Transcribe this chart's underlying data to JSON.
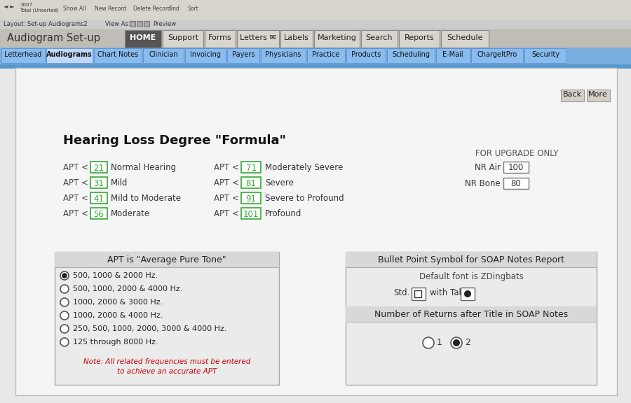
{
  "title_bar_text": "Audiogram Set-up",
  "back_more_buttons": [
    "Back",
    "More"
  ],
  "main_title": "Hearing Loss Degree \"Formula\"",
  "formula_rows_left": [
    {
      "label": "APT <",
      "value": "21",
      "desc": "Normal Hearing"
    },
    {
      "label": "APT <",
      "value": "31",
      "desc": "Mild"
    },
    {
      "label": "APT <",
      "value": "41",
      "desc": "Mild to Moderate"
    },
    {
      "label": "APT <",
      "value": "56",
      "desc": "Moderate"
    }
  ],
  "formula_rows_right": [
    {
      "label": "APT <",
      "value": "71",
      "desc": "Moderately Severe"
    },
    {
      "label": "APT <",
      "value": "81",
      "desc": "Severe"
    },
    {
      "label": "APT <",
      "value": "91",
      "desc": "Severe to Profound"
    },
    {
      "label": "APT <",
      "value": "101",
      "desc": "Profound"
    }
  ],
  "upgrade_title": "FOR UPGRADE ONLY",
  "nr_air_label": "NR Air",
  "nr_air_value": "100",
  "nr_bone_label": "NR Bone",
  "nr_bone_value": "80",
  "apt_box_title": "APT is \"Average Pure Tone\"",
  "apt_options": [
    {
      "text": "500, 1000 & 2000 Hz.",
      "selected": true
    },
    {
      "text": "500, 1000, 2000 & 4000 Hz.",
      "selected": false
    },
    {
      "text": "1000, 2000 & 3000 Hz.",
      "selected": false
    },
    {
      "text": "1000, 2000 & 4000 Hz.",
      "selected": false
    },
    {
      "text": "250, 500, 1000, 2000, 3000 & 4000 Hz.",
      "selected": false
    },
    {
      "text": "125 through 8000 Hz.",
      "selected": false
    }
  ],
  "apt_note": "Note: All related frequencies must be entered\nto achieve an accurate APT",
  "bullet_title": "Bullet Point Symbol for SOAP Notes Report",
  "bullet_font_note": "Default font is ZDingbats",
  "std_label": "Std.",
  "with_tab_label": "with Tab",
  "returns_title": "Number of Returns after Title in SOAP Notes",
  "returns_options": [
    {
      "value": "1",
      "selected": false
    },
    {
      "value": "2",
      "selected": true
    }
  ],
  "bg_color": "#e8e8e8",
  "panel_bg": "#f5f5f5",
  "toolbar_bg": "#d8d5ce",
  "nav_bg": "#c0bdb6",
  "nav_active_bg": "#555555",
  "sub_bar_bg": "#7ab0e0",
  "sub_tab_bg": "#88bbee",
  "sub_active_bg": "#aad0ff",
  "panel_inner_bg": "#f0f0f0",
  "red_note_color": "#cc0000",
  "green_box_color": "#33aa33",
  "gray_box_color": "#888888"
}
